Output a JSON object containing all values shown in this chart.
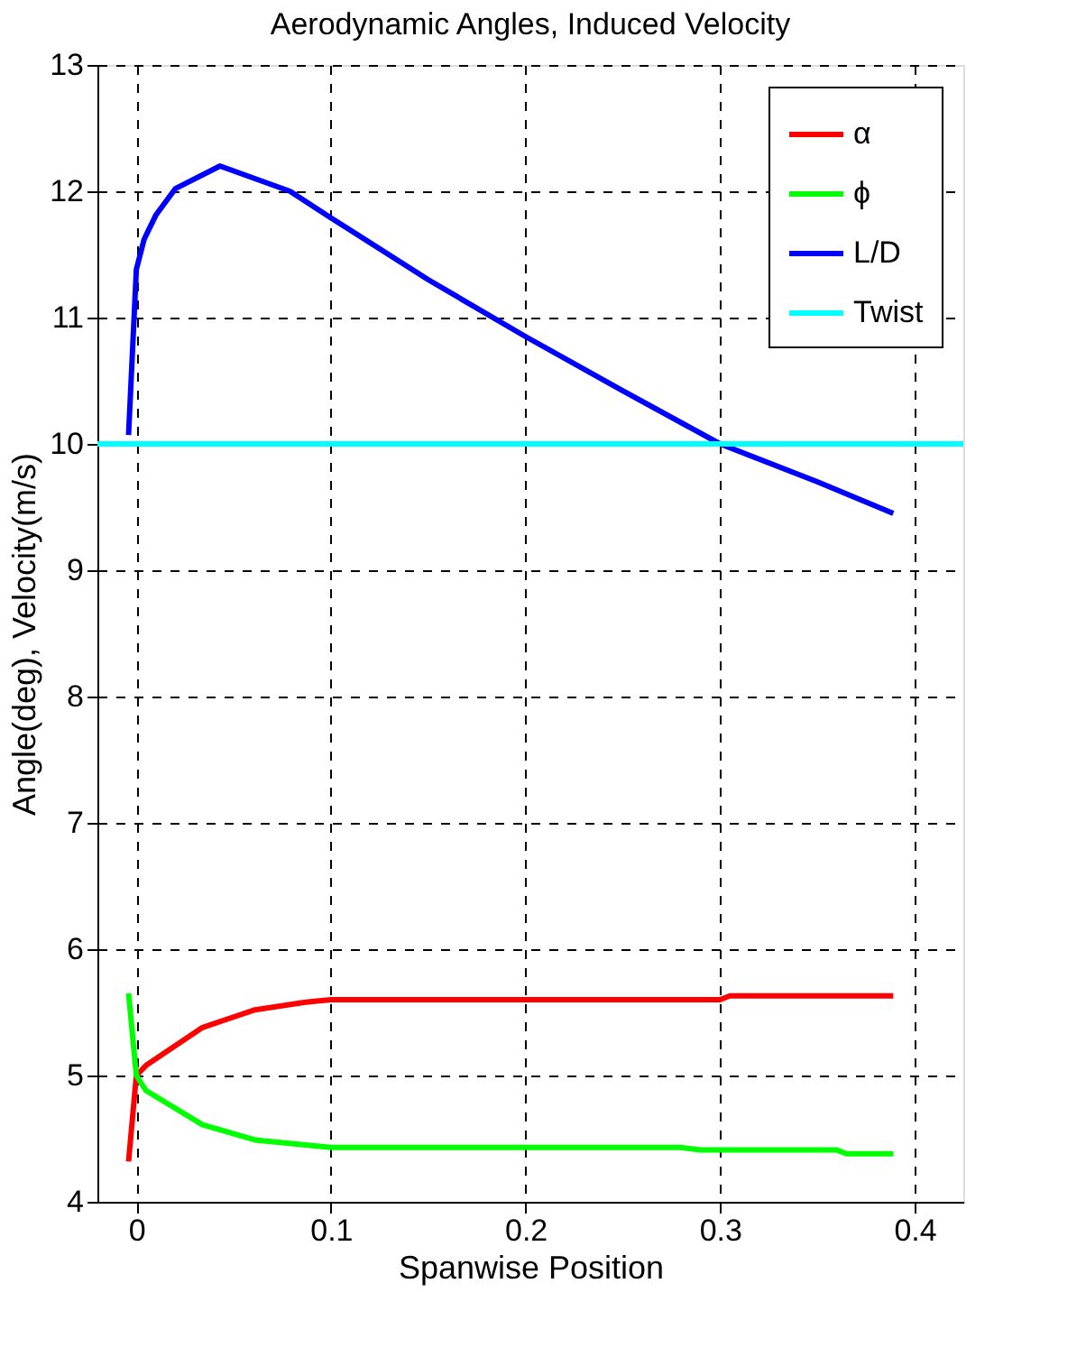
{
  "chart_data": {
    "type": "line",
    "title": "Aerodynamic Angles, Induced Velocity",
    "xlabel": "Spanwise Position",
    "ylabel": "Angle(deg), Velocity(m/s)",
    "xlim": [
      -0.02,
      0.425
    ],
    "ylim": [
      4,
      13
    ],
    "xticks": [
      0,
      0.1,
      0.2,
      0.3,
      0.4
    ],
    "yticks": [
      4,
      5,
      6,
      7,
      8,
      9,
      10,
      11,
      12,
      13
    ],
    "grid": true,
    "legend": "top right",
    "marker": "none",
    "line_style": "solid",
    "series": [
      {
        "name": "α",
        "color": "#ff0000",
        "x": [
          -0.004,
          0.0,
          0.005,
          0.034,
          0.061,
          0.087,
          0.1,
          0.2,
          0.3,
          0.305,
          0.389
        ],
        "values": [
          4.32,
          5.0,
          5.08,
          5.38,
          5.52,
          5.58,
          5.6,
          5.6,
          5.6,
          5.63,
          5.63
        ]
      },
      {
        "name": "ϕ",
        "color": "#00ff00",
        "x": [
          -0.004,
          0.0,
          0.005,
          0.034,
          0.061,
          0.087,
          0.1,
          0.2,
          0.28,
          0.29,
          0.36,
          0.365,
          0.389
        ],
        "values": [
          5.65,
          5.0,
          4.88,
          4.61,
          4.49,
          4.45,
          4.43,
          4.43,
          4.43,
          4.41,
          4.41,
          4.38,
          4.38
        ]
      },
      {
        "name": "L/D",
        "color": "#0000ff",
        "x": [
          -0.004,
          0.0,
          0.004,
          0.01,
          0.02,
          0.043,
          0.079,
          0.1,
          0.15,
          0.2,
          0.25,
          0.3,
          0.35,
          0.389
        ],
        "values": [
          10.07,
          11.38,
          11.62,
          11.81,
          12.02,
          12.2,
          12.0,
          11.79,
          11.3,
          10.85,
          10.42,
          10.0,
          9.7,
          9.45
        ]
      },
      {
        "name": "Twist",
        "color": "#00ffff",
        "x": [
          -0.02,
          0.425
        ],
        "values": [
          10,
          10
        ]
      }
    ]
  }
}
